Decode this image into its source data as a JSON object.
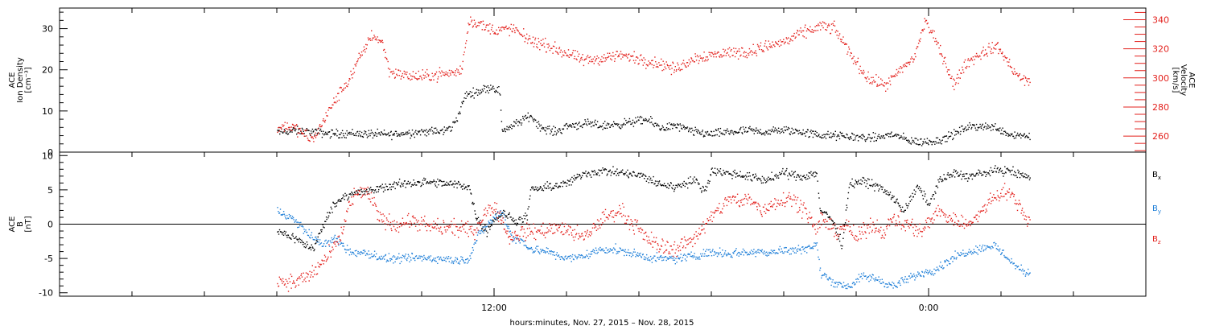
{
  "chart_data": [
    {
      "type": "scatter",
      "panel": "ace-ion-density-velocity",
      "ylabel_lines": [
        "ACE",
        "Ion Density",
        "[cm⁻³]"
      ],
      "ylim": [
        0,
        35
      ],
      "yticks": [
        0,
        10,
        20,
        30
      ],
      "y2label_lines": [
        "ACE",
        "Velocity",
        "[km/s]"
      ],
      "y2lim": [
        249,
        348
      ],
      "y2ticks": [
        260,
        280,
        300,
        320,
        340
      ],
      "colors": {
        "density": "#000000",
        "velocity": "#e3201c"
      },
      "series": [
        {
          "name": "",
          "axis": "left",
          "color": "#000000",
          "knots": [
            [
              0,
              5
            ],
            [
              0.5,
              5.3
            ],
            [
              1,
              5
            ],
            [
              1.5,
              4.6
            ],
            [
              2,
              4.7
            ],
            [
              2.6,
              4.5
            ],
            [
              3.2,
              4.4
            ],
            [
              3.6,
              4.8
            ],
            [
              4.2,
              5.2
            ],
            [
              4.5,
              5
            ],
            [
              4.8,
              6
            ],
            [
              5,
              9
            ],
            [
              5.2,
              14
            ],
            [
              5.6,
              15
            ],
            [
              5.9,
              16
            ],
            [
              6.15,
              15
            ],
            [
              6.2,
              5.5
            ],
            [
              6.5,
              6.5
            ],
            [
              7,
              9
            ],
            [
              7.3,
              6
            ],
            [
              7.7,
              5
            ],
            [
              8,
              6.5
            ],
            [
              8.5,
              7
            ],
            [
              9,
              6.5
            ],
            [
              9.5,
              7
            ],
            [
              10.2,
              8
            ],
            [
              10.6,
              6
            ],
            [
              11,
              6.5
            ],
            [
              11.5,
              5
            ],
            [
              12,
              4.5
            ],
            [
              12.5,
              5
            ],
            [
              13,
              5.3
            ],
            [
              13.5,
              5
            ],
            [
              14,
              5.5
            ],
            [
              14.5,
              5
            ],
            [
              15,
              4.2
            ],
            [
              15.6,
              4
            ],
            [
              16,
              3.8
            ],
            [
              16.5,
              3.5
            ],
            [
              17,
              4.5
            ],
            [
              17.4,
              3
            ],
            [
              17.8,
              2.5
            ],
            [
              18.3,
              3
            ],
            [
              18.7,
              4.5
            ],
            [
              19,
              6
            ],
            [
              19.4,
              6.5
            ],
            [
              19.9,
              6
            ],
            [
              20.2,
              4.5
            ],
            [
              20.8,
              4
            ]
          ],
          "noise": 0.9
        },
        {
          "name": "",
          "axis": "right",
          "color": "#e3201c",
          "knots": [
            [
              0,
              265
            ],
            [
              0.3,
              268
            ],
            [
              0.7,
              262
            ],
            [
              1,
              258
            ],
            [
              1.3,
              272
            ],
            [
              1.6,
              285
            ],
            [
              2,
              300
            ],
            [
              2.4,
              320
            ],
            [
              2.6,
              330
            ],
            [
              2.9,
              325
            ],
            [
              3.1,
              305
            ],
            [
              3.5,
              302
            ],
            [
              4,
              301
            ],
            [
              4.5,
              303
            ],
            [
              5,
              304
            ],
            [
              5.1,
              307
            ],
            [
              5.3,
              340
            ],
            [
              5.6,
              337
            ],
            [
              6,
              333
            ],
            [
              6.5,
              334
            ],
            [
              7,
              326
            ],
            [
              7.5,
              322
            ],
            [
              8,
              317
            ],
            [
              8.5,
              312
            ],
            [
              9,
              314
            ],
            [
              9.5,
              316
            ],
            [
              10.2,
              312
            ],
            [
              10.6,
              310
            ],
            [
              11,
              306
            ],
            [
              11.5,
              314
            ],
            [
              12,
              316
            ],
            [
              12.5,
              318
            ],
            [
              13,
              318
            ],
            [
              13.5,
              322
            ],
            [
              14,
              325
            ],
            [
              14.5,
              331
            ],
            [
              15,
              336
            ],
            [
              15.4,
              334
            ],
            [
              15.8,
              318
            ],
            [
              16.3,
              300
            ],
            [
              16.8,
              295
            ],
            [
              17.2,
              305
            ],
            [
              17.6,
              315
            ],
            [
              17.9,
              340
            ],
            [
              18.3,
              320
            ],
            [
              18.7,
              295
            ],
            [
              19,
              310
            ],
            [
              19.5,
              318
            ],
            [
              19.9,
              322
            ],
            [
              20.2,
              310
            ],
            [
              20.5,
              300
            ],
            [
              20.7,
              298
            ]
          ],
          "noise": 3.5
        }
      ]
    },
    {
      "type": "scatter",
      "panel": "ace-magnetic-field",
      "ylabel_lines": [
        "ACE",
        "B",
        "[nT]"
      ],
      "ylim": [
        -10.5,
        10.5
      ],
      "yticks": [
        -10,
        -5,
        0,
        5,
        10
      ],
      "zero_line": true,
      "series": [
        {
          "name": "B_x",
          "axis": "left",
          "color": "#000000",
          "knots": [
            [
              0,
              -1
            ],
            [
              0.3,
              -1.5
            ],
            [
              0.5,
              -2
            ],
            [
              0.8,
              -3
            ],
            [
              1,
              -3.5
            ],
            [
              1.2,
              -1
            ],
            [
              1.5,
              2.5
            ],
            [
              1.8,
              4
            ],
            [
              2,
              4.5
            ],
            [
              2.5,
              4.8
            ],
            [
              3,
              5.5
            ],
            [
              3.5,
              6
            ],
            [
              4,
              6.2
            ],
            [
              4.5,
              6
            ],
            [
              5,
              5.8
            ],
            [
              5.3,
              5.5
            ],
            [
              5.5,
              1
            ],
            [
              5.8,
              -1
            ],
            [
              6,
              1
            ],
            [
              6.3,
              1.5
            ],
            [
              6.6,
              0.5
            ],
            [
              6.9,
              1
            ],
            [
              7,
              5
            ],
            [
              7.5,
              5.5
            ],
            [
              8,
              6
            ],
            [
              8.5,
              7.5
            ],
            [
              9,
              7.8
            ],
            [
              9.5,
              7.5
            ],
            [
              10,
              7.2
            ],
            [
              10.5,
              6
            ],
            [
              11,
              5.5
            ],
            [
              11.5,
              6.5
            ],
            [
              11.8,
              5
            ],
            [
              12,
              7.8
            ],
            [
              12.5,
              7.5
            ],
            [
              13,
              7
            ],
            [
              13.5,
              6.5
            ],
            [
              14,
              7.5
            ],
            [
              14.5,
              7
            ],
            [
              14.9,
              7.5
            ],
            [
              15,
              2
            ],
            [
              15.3,
              1
            ],
            [
              15.6,
              -3
            ],
            [
              15.8,
              6
            ],
            [
              16.2,
              6.3
            ],
            [
              16.6,
              5.5
            ],
            [
              17,
              4
            ],
            [
              17.3,
              2
            ],
            [
              17.7,
              5.5
            ],
            [
              18,
              3
            ],
            [
              18.3,
              6.5
            ],
            [
              18.7,
              7.5
            ],
            [
              19.1,
              7
            ],
            [
              19.5,
              7.5
            ],
            [
              20,
              8
            ],
            [
              20.4,
              7.5
            ],
            [
              20.7,
              7
            ]
          ],
          "noise": 0.55
        },
        {
          "name": "B_y",
          "axis": "left",
          "color": "#1f7fd8",
          "knots": [
            [
              0,
              2
            ],
            [
              0.4,
              1
            ],
            [
              0.8,
              -1
            ],
            [
              1,
              -2
            ],
            [
              1.3,
              -3
            ],
            [
              1.6,
              -2
            ],
            [
              2,
              -4
            ],
            [
              2.5,
              -4.2
            ],
            [
              3,
              -5
            ],
            [
              3.5,
              -5
            ],
            [
              4,
              -4.8
            ],
            [
              4.5,
              -5
            ],
            [
              5,
              -5.2
            ],
            [
              5.3,
              -5
            ],
            [
              5.5,
              -2
            ],
            [
              5.8,
              0
            ],
            [
              6.2,
              2
            ],
            [
              6.5,
              -2
            ],
            [
              6.8,
              -2.5
            ],
            [
              7,
              -3.5
            ],
            [
              7.5,
              -4
            ],
            [
              8,
              -5
            ],
            [
              8.5,
              -4.5
            ],
            [
              9,
              -3.5
            ],
            [
              9.5,
              -3.8
            ],
            [
              10,
              -4.5
            ],
            [
              10.5,
              -5
            ],
            [
              11,
              -5
            ],
            [
              11.5,
              -4.5
            ],
            [
              12,
              -4
            ],
            [
              12.5,
              -4.2
            ],
            [
              13,
              -4
            ],
            [
              13.5,
              -4
            ],
            [
              14,
              -3.8
            ],
            [
              14.5,
              -3.5
            ],
            [
              14.9,
              -3
            ],
            [
              15,
              -7
            ],
            [
              15.4,
              -8.5
            ],
            [
              15.8,
              -9
            ],
            [
              16.2,
              -7.5
            ],
            [
              16.6,
              -8
            ],
            [
              17,
              -9
            ],
            [
              17.4,
              -8
            ],
            [
              17.8,
              -7
            ],
            [
              18.2,
              -6.5
            ],
            [
              18.6,
              -5
            ],
            [
              19,
              -4
            ],
            [
              19.4,
              -3.5
            ],
            [
              19.8,
              -3
            ],
            [
              20.2,
              -5
            ],
            [
              20.5,
              -6.5
            ],
            [
              20.7,
              -7
            ]
          ],
          "noise": 0.55
        },
        {
          "name": "B_z",
          "axis": "left",
          "color": "#e3201c",
          "knots": [
            [
              0,
              -8
            ],
            [
              0.5,
              -8.5
            ],
            [
              1,
              -7
            ],
            [
              1.5,
              -4
            ],
            [
              1.8,
              -1
            ],
            [
              2,
              3
            ],
            [
              2.3,
              5
            ],
            [
              2.6,
              4
            ],
            [
              2.8,
              1
            ],
            [
              3.2,
              0
            ],
            [
              3.6,
              0.5
            ],
            [
              4,
              0
            ],
            [
              4.5,
              -0.5
            ],
            [
              5,
              -0.5
            ],
            [
              5.4,
              -1
            ],
            [
              5.8,
              2
            ],
            [
              6,
              3
            ],
            [
              6.4,
              -2
            ],
            [
              6.8,
              -1
            ],
            [
              7.2,
              -1
            ],
            [
              7.6,
              -0.5
            ],
            [
              8,
              -0.8
            ],
            [
              8.5,
              -2
            ],
            [
              9,
              1
            ],
            [
              9.5,
              2
            ],
            [
              10,
              -1
            ],
            [
              10.5,
              -3
            ],
            [
              11,
              -3.5
            ],
            [
              11.5,
              -2
            ],
            [
              12,
              1
            ],
            [
              12.5,
              4
            ],
            [
              12.8,
              3
            ],
            [
              13,
              4
            ],
            [
              13.4,
              2
            ],
            [
              13.8,
              3.5
            ],
            [
              14.2,
              4
            ],
            [
              14.6,
              2
            ],
            [
              14.9,
              -1
            ],
            [
              15,
              1
            ],
            [
              15.4,
              -1
            ],
            [
              15.7,
              0
            ],
            [
              16,
              -2
            ],
            [
              16.4,
              0
            ],
            [
              16.8,
              -1
            ],
            [
              17,
              1
            ],
            [
              17.4,
              0
            ],
            [
              17.8,
              -1
            ],
            [
              18.2,
              2
            ],
            [
              18.6,
              1
            ],
            [
              19,
              0
            ],
            [
              19.4,
              1.5
            ],
            [
              19.8,
              4
            ],
            [
              20.1,
              5
            ],
            [
              20.4,
              3.5
            ],
            [
              20.7,
              1
            ]
          ],
          "noise": 1.0
        }
      ]
    }
  ],
  "x_axis": {
    "xlim": [
      -6,
      24
    ],
    "tick_labels": [
      {
        "x": 6,
        "label": "12:00"
      },
      {
        "x": 18,
        "label": "0:00"
      }
    ],
    "xlabel": "hours:minutes, Nov. 27, 2015 – Nov. 28, 2015"
  },
  "legend": {
    "position": "right",
    "entries": [
      {
        "label": "B",
        "sub": "x"
      },
      {
        "label": "B",
        "sub": "y"
      },
      {
        "label": "B",
        "sub": "z"
      }
    ]
  }
}
